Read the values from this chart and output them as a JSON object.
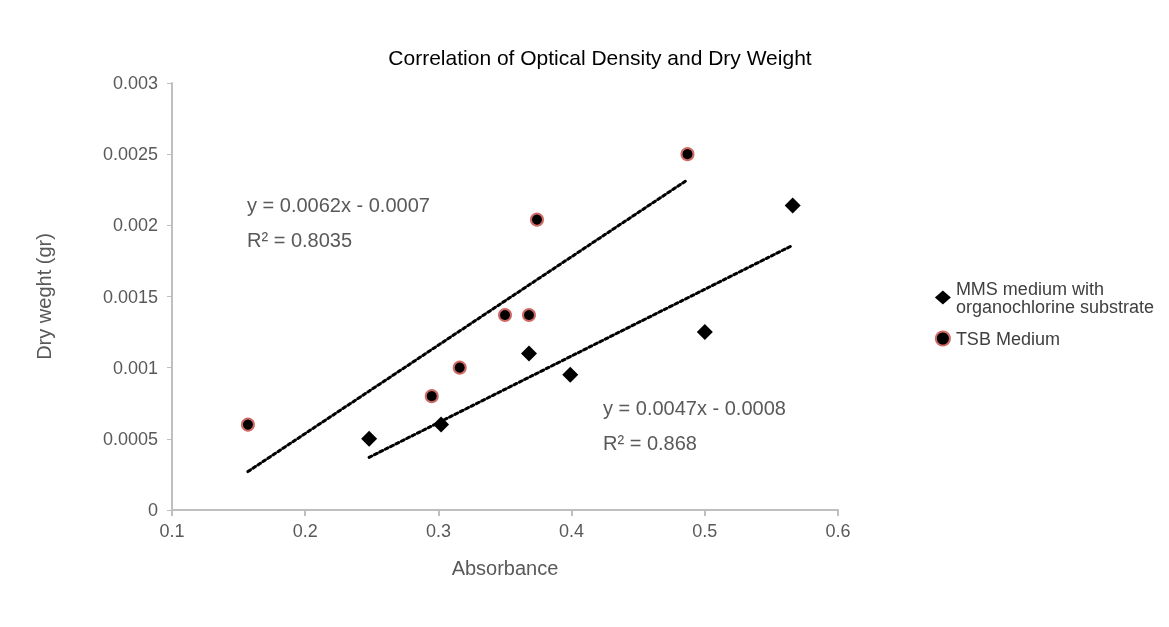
{
  "chart_data": {
    "type": "scatter",
    "title": "Correlation of Optical Density and Dry Weight",
    "xlabel": "Absorbance",
    "ylabel": "Dry weght (gr)",
    "xlim": [
      0.1,
      0.6
    ],
    "xticks": [
      0.1,
      0.2,
      0.3,
      0.4,
      0.5,
      0.6
    ],
    "ylim": [
      0,
      0.003
    ],
    "yticks": [
      0,
      0.0005,
      0.001,
      0.0015,
      0.002,
      0.0025,
      0.003
    ],
    "grid": false,
    "legend": "right",
    "series": [
      {
        "name": "MMS medium with organochlorine substrate",
        "color": "#000000",
        "marker": "diamond",
        "x": [
          0.248,
          0.302,
          0.368,
          0.399,
          0.5,
          0.566
        ],
        "values": [
          0.0005,
          0.0006,
          0.0011,
          0.00095,
          0.00125,
          0.00214
        ]
      },
      {
        "name": "TSB Medium",
        "color": "#000000",
        "marker": "circle",
        "x": [
          0.157,
          0.295,
          0.316,
          0.35,
          0.368,
          0.374,
          0.487
        ],
        "values": [
          0.0006,
          0.0008,
          0.001,
          0.00137,
          0.00137,
          0.00204,
          0.0025
        ]
      },
      {
        "type": "line",
        "color": "#000000",
        "marker": "none",
        "line_style": "dotted",
        "x": [
          0.157,
          0.487
        ],
        "values": [
          0.00027,
          0.00232
        ]
      },
      {
        "type": "line",
        "color": "#000000",
        "marker": "none",
        "line_style": "dotted",
        "x": [
          0.248,
          0.566
        ],
        "values": [
          0.00037,
          0.00186
        ]
      }
    ],
    "annotations": [
      "y = 0.0062x - 0.0007",
      "R² = 0.8035",
      "y = 0.0047x - 0.0008",
      "R² = 0.868"
    ]
  }
}
